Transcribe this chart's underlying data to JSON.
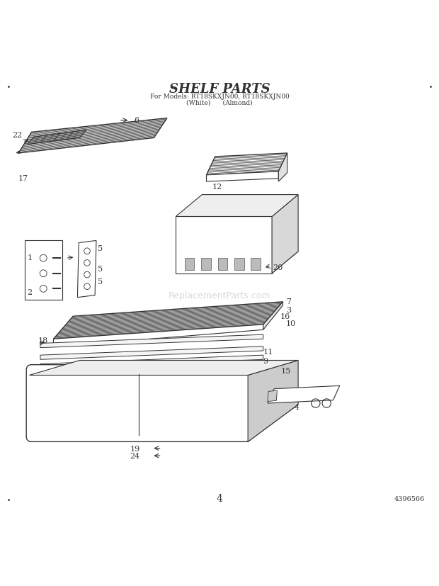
{
  "title": "SHELF PARTS",
  "subtitle_line1": "For Models: RT18SKXJN00, RT18SKXJN00",
  "subtitle_line2": "(White)      (Almond)",
  "page_number": "4",
  "doc_number": "4396566",
  "background_color": "#ffffff",
  "line_color": "#333333"
}
